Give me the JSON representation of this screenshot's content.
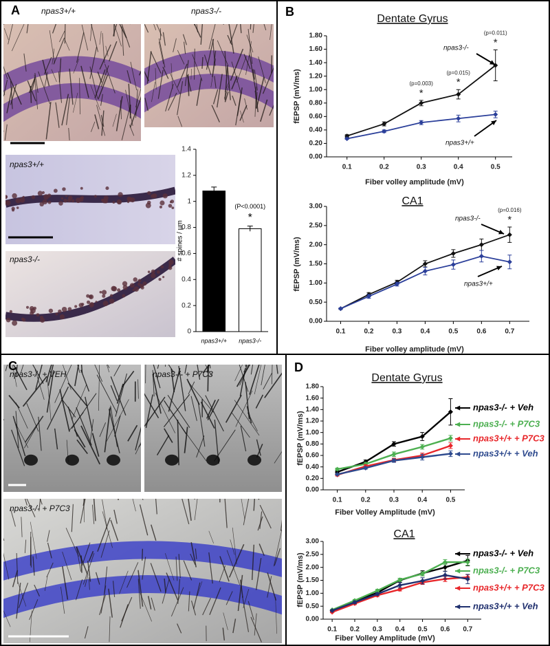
{
  "panels": [
    {
      "letter": "A",
      "images": [
        "npas3+/+",
        "npas3-/-",
        "npas3+/+",
        "npas3-/-"
      ]
    },
    {
      "letter": "B"
    },
    {
      "letter": "C",
      "images": [
        "npas3-/- + VEH",
        "npas3-/- + P7C3",
        "npas3-/- + P7C3"
      ]
    },
    {
      "letter": "D"
    }
  ],
  "chart_data": [
    {
      "type": "bar",
      "ylabel": "# spines / µm",
      "categories": [
        "npas3+/+",
        "npas3-/-"
      ],
      "values": [
        1.08,
        0.79
      ],
      "errors": [
        0.03,
        0.02
      ],
      "colors": [
        "#000000",
        "#ffffff"
      ],
      "notes": [
        null,
        "(P<0.0001)"
      ],
      "stars": [
        null,
        "*"
      ],
      "ylim": [
        0,
        1.4
      ],
      "yticks": [
        0,
        0.2,
        0.4,
        0.6,
        0.8,
        1,
        1.2,
        1.4
      ]
    },
    {
      "type": "line",
      "title": "Dentate Gyrus",
      "xlabel": "Fiber volley amplitude (mV)",
      "ylabel": "fEPSP (mV/ms)",
      "x": [
        0.1,
        0.2,
        0.3,
        0.4,
        0.5
      ],
      "xlim": [
        0.045,
        0.545
      ],
      "xticks": [
        0.1,
        0.2,
        0.3,
        0.4,
        0.5
      ],
      "ylim": [
        0,
        1.8
      ],
      "yticks": [
        {
          "value": 0,
          "label": "0.00"
        },
        {
          "value": 0.2,
          "label": "0.20"
        },
        {
          "value": 0.4,
          "label": "0.40"
        },
        {
          "value": 0.6,
          "label": "0.60"
        },
        {
          "value": 0.8,
          "label": "0.80"
        },
        {
          "value": 1,
          "label": "1.00"
        },
        {
          "value": 1.2,
          "label": "1.20"
        },
        {
          "value": 1.4,
          "label": "1.40"
        },
        {
          "value": 1.6,
          "label": "1.60"
        },
        {
          "value": 1.8,
          "label": "1.80"
        }
      ],
      "series": [
        {
          "name": "npas3-/-",
          "color": "#111111",
          "values": [
            0.31,
            0.49,
            0.8,
            0.93,
            1.36
          ],
          "errors": [
            0.02,
            0.03,
            0.04,
            0.07,
            0.23
          ],
          "notes": [
            null,
            null,
            "(p=0.003)",
            "(p=0.015)",
            "(p=0.011)"
          ],
          "stars": [
            null,
            null,
            "*",
            "*",
            "*"
          ]
        },
        {
          "name": "npas3+/+",
          "color": "#2b3f9a",
          "values": [
            0.27,
            0.38,
            0.51,
            0.57,
            0.63
          ],
          "errors": [
            0.01,
            0.02,
            0.03,
            0.05,
            0.05
          ]
        }
      ]
    },
    {
      "type": "line",
      "title": "CA1",
      "xlabel": "Fiber volley amplitude (mV)",
      "ylabel": "fEPSP (mV/ms)",
      "x": [
        0.1,
        0.2,
        0.3,
        0.4,
        0.5,
        0.6,
        0.7
      ],
      "xlim": [
        0.05,
        0.77
      ],
      "xticks": [
        0.1,
        0.2,
        0.3,
        0.4,
        0.5,
        0.6,
        0.7
      ],
      "ylim": [
        0,
        3
      ],
      "yticks": [
        {
          "value": 0,
          "label": "0.00"
        },
        {
          "value": 0.5,
          "label": "0.50"
        },
        {
          "value": 1,
          "label": "1.00"
        },
        {
          "value": 1.5,
          "label": "1.50"
        },
        {
          "value": 2,
          "label": "2.00"
        },
        {
          "value": 2.5,
          "label": "2.50"
        },
        {
          "value": 3,
          "label": "3.00"
        }
      ],
      "series": [
        {
          "name": "npas3-/-",
          "color": "#111111",
          "values": [
            0.33,
            0.7,
            1.02,
            1.5,
            1.77,
            2.0,
            2.26
          ],
          "errors": [
            0.02,
            0.05,
            0.05,
            0.08,
            0.1,
            0.15,
            0.2
          ],
          "notes": [
            null,
            null,
            null,
            null,
            null,
            null,
            "(p=0.016)"
          ],
          "stars": [
            null,
            null,
            null,
            null,
            null,
            null,
            "*"
          ]
        },
        {
          "name": "npas3+/+",
          "color": "#2b3f9a",
          "values": [
            0.33,
            0.65,
            0.97,
            1.31,
            1.48,
            1.7,
            1.55
          ],
          "errors": [
            0.02,
            0.05,
            0.05,
            0.1,
            0.12,
            0.15,
            0.18
          ]
        }
      ]
    },
    {
      "type": "line",
      "title": "Dentate Gyrus",
      "xlabel": "Fiber Volley Amplitude (mV)",
      "ylabel": "fEPSP (mV/ms)",
      "x": [
        0.1,
        0.2,
        0.3,
        0.4,
        0.5
      ],
      "xlim": [
        0.05,
        0.55
      ],
      "xticks": [
        0.1,
        0.2,
        0.3,
        0.4,
        0.5
      ],
      "ylim": [
        0,
        1.8
      ],
      "yticks": [
        {
          "value": 0,
          "label": "0.00"
        },
        {
          "value": 0.2,
          "label": "0.20"
        },
        {
          "value": 0.4,
          "label": "0.40"
        },
        {
          "value": 0.6,
          "label": "0.60"
        },
        {
          "value": 0.8,
          "label": "0.80"
        },
        {
          "value": 1,
          "label": "1.00"
        },
        {
          "value": 1.2,
          "label": "1.20"
        },
        {
          "value": 1.4,
          "label": "1.40"
        },
        {
          "value": 1.6,
          "label": "1.60"
        },
        {
          "value": 1.8,
          "label": "1.80"
        }
      ],
      "series": [
        {
          "name": "npas3-/- + Veh",
          "color": "#000000",
          "values": [
            0.31,
            0.49,
            0.8,
            0.93,
            1.36
          ],
          "errors": [
            0.02,
            0.03,
            0.04,
            0.07,
            0.23
          ]
        },
        {
          "name": "npas3-/- + P7C3",
          "color": "#4caf50",
          "values": [
            0.36,
            0.45,
            0.62,
            0.75,
            0.9
          ],
          "errors": [
            0.02,
            0.03,
            0.04,
            0.04,
            0.05
          ]
        },
        {
          "name": "npas3+/+ + P7C3",
          "color": "#e8262a",
          "values": [
            0.26,
            0.41,
            0.52,
            0.6,
            0.77
          ],
          "errors": [
            0.02,
            0.03,
            0.03,
            0.04,
            0.05
          ]
        },
        {
          "name": "npas3+/+ + Veh",
          "color": "#2e4a8e",
          "values": [
            0.27,
            0.38,
            0.51,
            0.57,
            0.63
          ],
          "errors": [
            0.01,
            0.02,
            0.03,
            0.05,
            0.05
          ]
        }
      ]
    },
    {
      "type": "line",
      "title": "CA1",
      "xlabel": "Fiber Volley Amplitude (mV)",
      "ylabel": "fEPSP (mV/ms)",
      "x": [
        0.1,
        0.2,
        0.3,
        0.4,
        0.5,
        0.6,
        0.7
      ],
      "xlim": [
        0.06,
        0.76
      ],
      "xticks": [
        0.1,
        0.2,
        0.3,
        0.4,
        0.5,
        0.6,
        0.7
      ],
      "ylim": [
        0,
        3
      ],
      "yticks": [
        {
          "value": 0,
          "label": "0.00"
        },
        {
          "value": 0.5,
          "label": "0.50"
        },
        {
          "value": 1,
          "label": "1.00"
        },
        {
          "value": 1.5,
          "label": "1.50"
        },
        {
          "value": 2,
          "label": "2.00"
        },
        {
          "value": 2.5,
          "label": "2.50"
        },
        {
          "value": 3,
          "label": "3.00"
        }
      ],
      "series": [
        {
          "name": "npas3-/- + Veh",
          "color": "#000000",
          "values": [
            0.33,
            0.7,
            1.02,
            1.5,
            1.77,
            2.0,
            2.26
          ],
          "errors": [
            0.02,
            0.05,
            0.05,
            0.08,
            0.1,
            0.15,
            0.2
          ]
        },
        {
          "name": "npas3-/- + P7C3",
          "color": "#4caf50",
          "values": [
            0.36,
            0.72,
            1.1,
            1.52,
            1.75,
            2.2,
            2.2
          ],
          "errors": [
            0.02,
            0.04,
            0.05,
            0.06,
            0.08,
            0.1,
            0.12
          ]
        },
        {
          "name": "npas3+/+ + P7C3",
          "color": "#e8262a",
          "values": [
            0.27,
            0.6,
            0.92,
            1.15,
            1.42,
            1.55,
            1.62
          ],
          "errors": [
            0.02,
            0.04,
            0.05,
            0.06,
            0.08,
            0.1,
            0.1
          ]
        },
        {
          "name": "npas3+/+ + Veh",
          "color": "#1f2f6e",
          "values": [
            0.33,
            0.65,
            0.97,
            1.31,
            1.48,
            1.7,
            1.55
          ],
          "errors": [
            0.02,
            0.05,
            0.05,
            0.1,
            0.12,
            0.15,
            0.18
          ]
        }
      ]
    }
  ]
}
